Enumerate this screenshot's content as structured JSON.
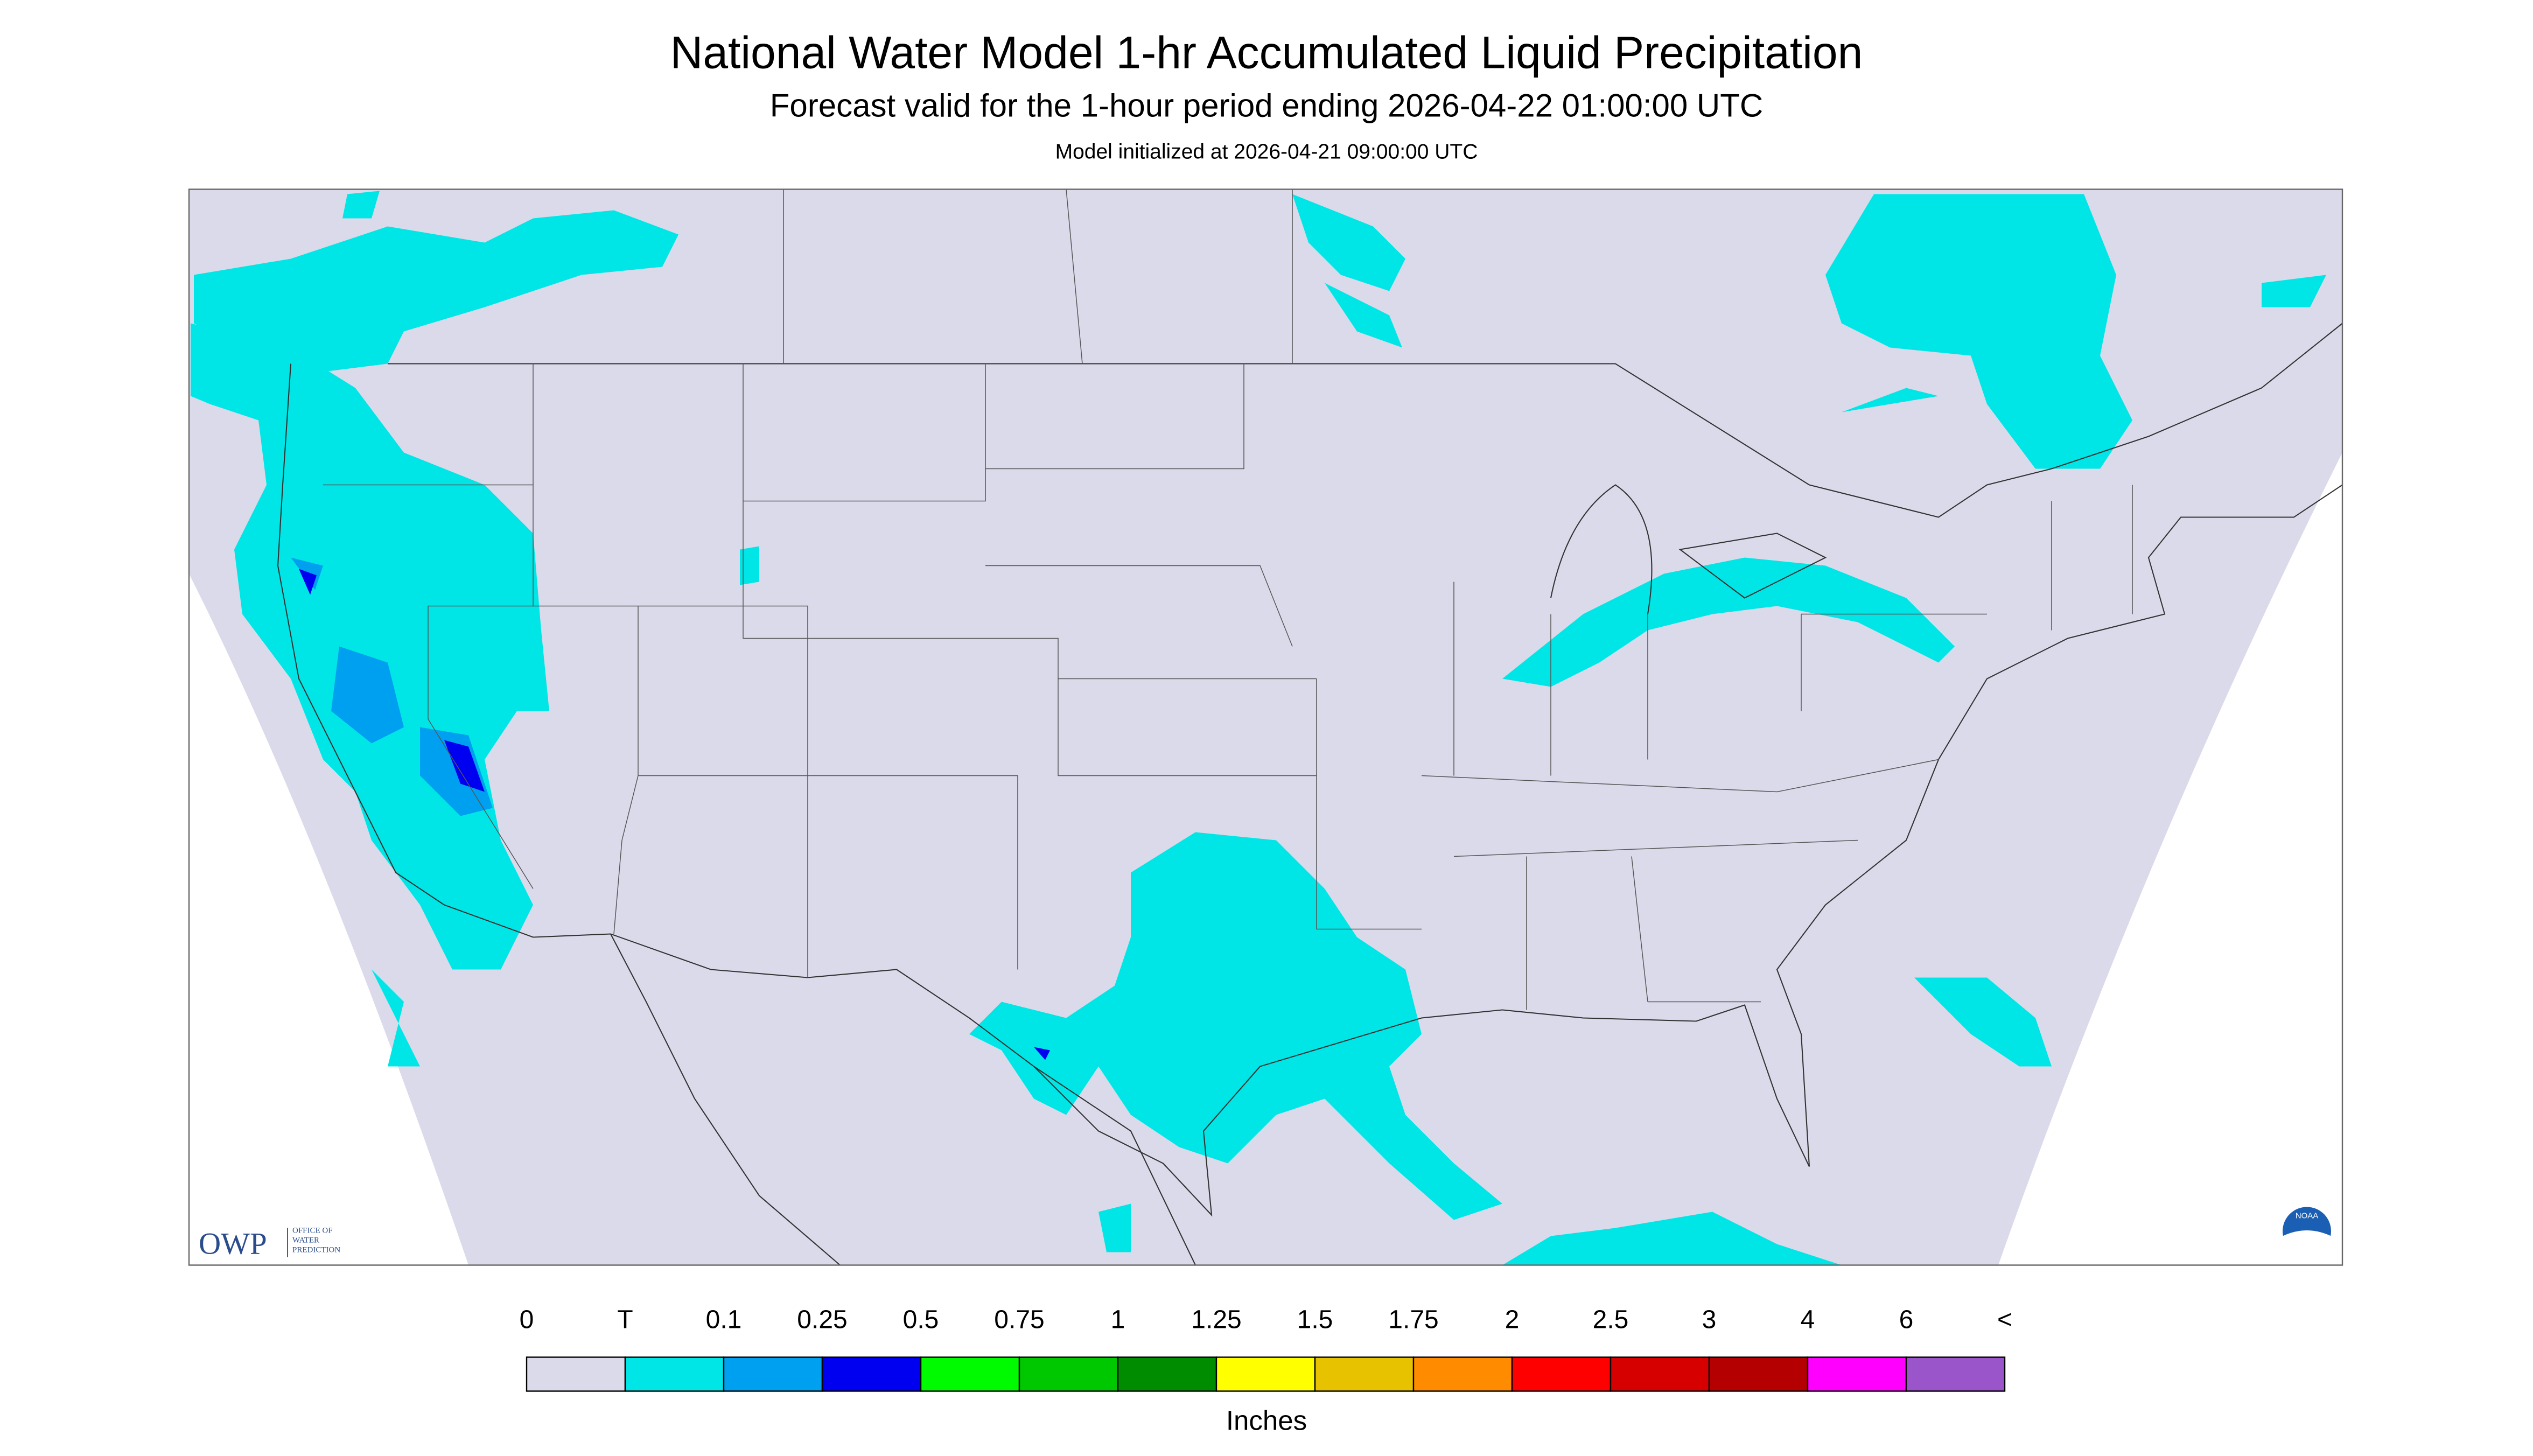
{
  "header": {
    "title": "National Water Model 1-hr Accumulated Liquid Precipitation",
    "subtitle": "Forecast valid for the 1-hour period ending 2026-04-22 01:00:00 UTC",
    "note": "Model initialized at 2026-04-21 09:00:00 UTC"
  },
  "map": {
    "logo": {
      "acronym": "OWP",
      "name": [
        "OFFICE OF",
        "WATER",
        "PREDICTION"
      ]
    },
    "badge": "NOAA"
  },
  "legend": {
    "labels": [
      "0",
      "T",
      "0.1",
      "0.25",
      "0.5",
      "0.75",
      "1",
      "1.25",
      "1.5",
      "1.75",
      "2",
      "2.5",
      "3",
      "4",
      "6",
      "<"
    ],
    "colors": [
      "#dadaeb",
      "#00e6e6",
      "#00a0f0",
      "#0000f0",
      "#00fa00",
      "#00c800",
      "#008c00",
      "#ffff00",
      "#e6c200",
      "#ff8c00",
      "#ff0000",
      "#d70000",
      "#b40000",
      "#ff00ff",
      "#9955c9"
    ],
    "units": "Inches"
  }
}
